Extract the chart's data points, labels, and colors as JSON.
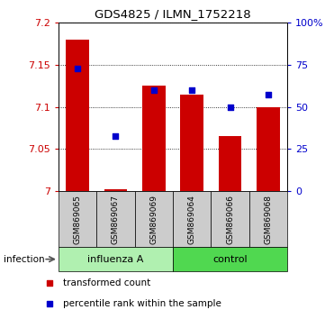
{
  "title": "GDS4825 / ILMN_1752218",
  "samples": [
    "GSM869065",
    "GSM869067",
    "GSM869069",
    "GSM869064",
    "GSM869066",
    "GSM869068"
  ],
  "bar_values": [
    7.18,
    7.003,
    7.125,
    7.115,
    7.065,
    7.1
  ],
  "percentile_values": [
    72.5,
    32.5,
    60.0,
    60.0,
    50.0,
    57.0
  ],
  "bar_color": "#cc0000",
  "dot_color": "#0000cc",
  "ymin": 7.0,
  "ymax": 7.2,
  "yticks": [
    7.0,
    7.05,
    7.1,
    7.15,
    7.2
  ],
  "ytick_labels": [
    "7",
    "7.05",
    "7.1",
    "7.15",
    "7.2"
  ],
  "y2min": 0,
  "y2max": 100,
  "y2ticks": [
    0,
    25,
    50,
    75,
    100
  ],
  "y2ticklabels": [
    "0",
    "25",
    "50",
    "75",
    "100%"
  ],
  "infection_label": "infection",
  "group_label_influenza": "influenza A",
  "group_label_control": "control",
  "influenza_color": "#b0f0b0",
  "control_color": "#50d850",
  "legend1": "transformed count",
  "legend2": "percentile rank within the sample",
  "bar_width": 0.6
}
